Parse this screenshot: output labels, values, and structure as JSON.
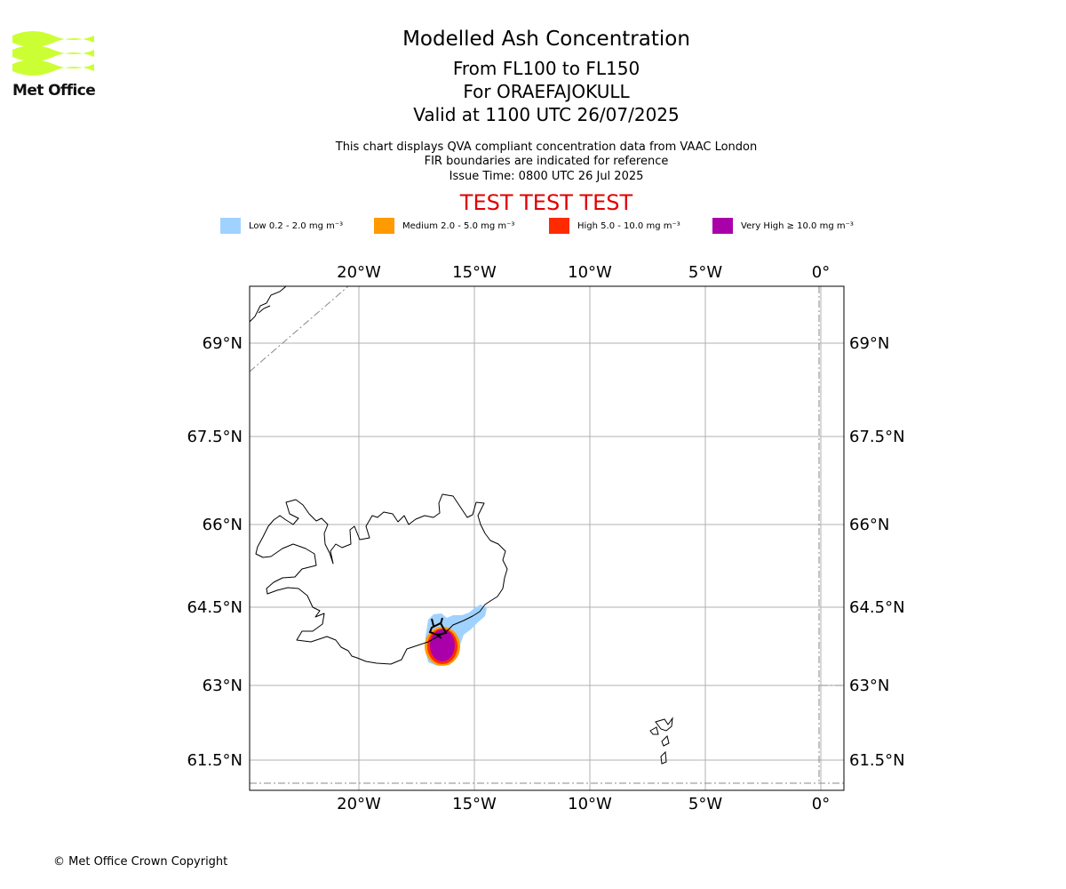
{
  "header": {
    "logo_text": "Met Office",
    "title": "Modelled Ash Concentration",
    "subtitle_levels": "From FL100 to FL150",
    "subtitle_volcano": "For ORAEFAJOKULL",
    "subtitle_valid": "Valid at 1100 UTC 26/07/2025",
    "note_qva": "This chart displays QVA compliant concentration data from VAAC London",
    "note_fir": "FIR boundaries are indicated for reference",
    "note_issue": "Issue Time: 0800 UTC 26 Jul 2025",
    "watermark": "TEST TEST TEST"
  },
  "legend": [
    {
      "label": "Low 0.2 - 2.0 mg m⁻³",
      "color": "#a0d2ff"
    },
    {
      "label": "Medium 2.0 - 5.0 mg m⁻³",
      "color": "#ff9a00"
    },
    {
      "label": "High 5.0 - 10.0 mg m⁻³",
      "color": "#ff2b00"
    },
    {
      "label": "Very High ≥ 10.0 mg m⁻³",
      "color": "#aa00aa"
    }
  ],
  "map": {
    "lon_labels": [
      "20°W",
      "15°W",
      "10°W",
      "5°W",
      "0°"
    ],
    "lat_labels": [
      "69°N",
      "67.5°N",
      "66°N",
      "64.5°N",
      "63°N",
      "61.5°N"
    ],
    "ash_concentration_at_volcano": "Very High"
  },
  "footer": {
    "copyright": "© Met Office Crown Copyright"
  },
  "colors": {
    "logo": "#ccff33",
    "watermark": "#e00000",
    "grid": "#b0b0b0"
  }
}
